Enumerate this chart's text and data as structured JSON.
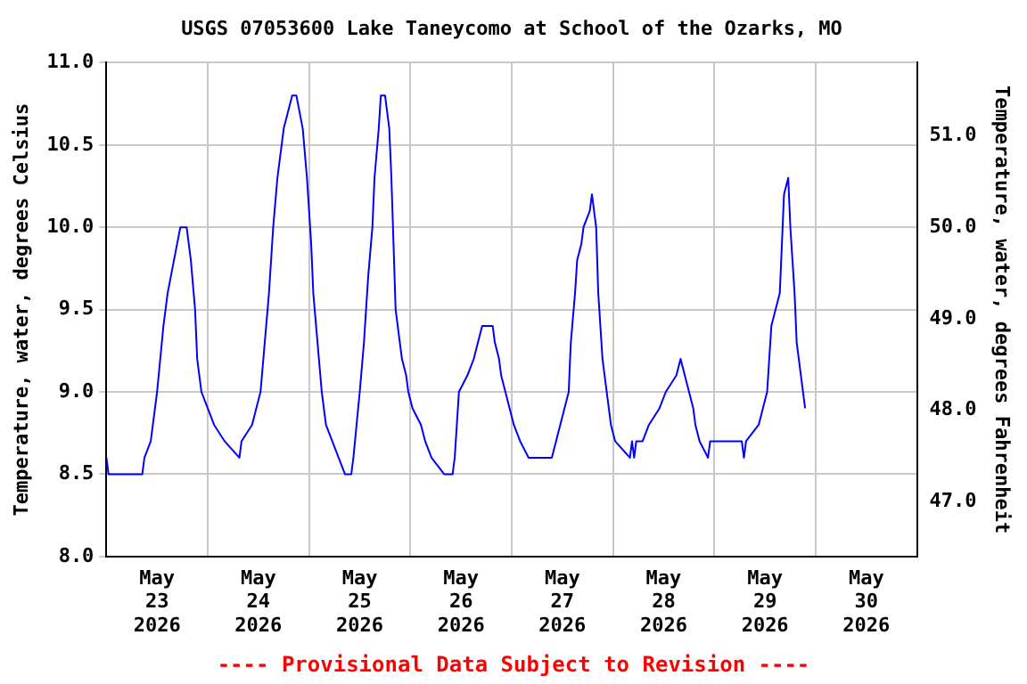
{
  "chart_data": {
    "type": "line",
    "title": "USGS 07053600 Lake Taneycomo at School of the Ozarks, MO",
    "ylabel": "Temperature, water, degrees Celsius",
    "y2label": "Temperature, water, degrees Fahrenheit",
    "annotations": [
      "---- Provisional Data Subject to Revision ----"
    ],
    "xlim": [
      "2026-05-23T00:00",
      "2026-05-31T00:00"
    ],
    "xticks": [
      {
        "value": "2026-05-23T00:00",
        "label": null
      },
      {
        "value": "2026-05-23T12:00",
        "label": "May\n23\n2026"
      },
      {
        "value": "2026-05-24T00:00",
        "label": null
      },
      {
        "value": "2026-05-24T12:00",
        "label": "May\n24\n2026"
      },
      {
        "value": "2026-05-25T00:00",
        "label": null
      },
      {
        "value": "2026-05-25T12:00",
        "label": "May\n25\n2026"
      },
      {
        "value": "2026-05-26T00:00",
        "label": null
      },
      {
        "value": "2026-05-26T12:00",
        "label": "May\n26\n2026"
      },
      {
        "value": "2026-05-27T00:00",
        "label": null
      },
      {
        "value": "2026-05-27T12:00",
        "label": "May\n27\n2026"
      },
      {
        "value": "2026-05-28T00:00",
        "label": null
      },
      {
        "value": "2026-05-28T12:00",
        "label": "May\n28\n2026"
      },
      {
        "value": "2026-05-29T00:00",
        "label": null
      },
      {
        "value": "2026-05-29T12:00",
        "label": "May\n29\n2026"
      },
      {
        "value": "2026-05-30T00:00",
        "label": null
      },
      {
        "value": "2026-05-30T12:00",
        "label": "May\n30\n2026"
      },
      {
        "value": "2026-05-31T00:00",
        "label": null
      }
    ],
    "ylim": [
      8,
      11
    ],
    "yticks": [
      {
        "value": 8,
        "label": "8.0"
      },
      {
        "value": 8.5,
        "label": "8.5"
      },
      {
        "value": 9,
        "label": "9.0"
      },
      {
        "value": 9.5,
        "label": "9.5"
      },
      {
        "value": 10,
        "label": "10.0"
      },
      {
        "value": 10.5,
        "label": "10.5"
      },
      {
        "value": 11,
        "label": "11.0"
      }
    ],
    "y2lim": [
      46.4,
      51.8
    ],
    "y2ticks": [
      {
        "value": 47,
        "label": "47.0"
      },
      {
        "value": 48,
        "label": "48.0"
      },
      {
        "value": 49,
        "label": "49.0"
      },
      {
        "value": 50,
        "label": "50.0"
      },
      {
        "value": 51,
        "label": "51.0"
      }
    ],
    "grid": true,
    "legend": false,
    "marker": "none",
    "line_style": "solid",
    "series": [
      {
        "color": "#0000ff",
        "x": [
          "2026-05-23T00:00",
          "2026-05-23T00:30",
          "2026-05-23T08:30",
          "2026-05-23T09:00",
          "2026-05-23T10:30",
          "2026-05-23T12:00",
          "2026-05-23T13:30",
          "2026-05-23T14:30",
          "2026-05-23T16:00",
          "2026-05-23T17:30",
          "2026-05-23T19:00",
          "2026-05-23T20:00",
          "2026-05-23T21:00",
          "2026-05-23T21:30",
          "2026-05-23T22:30",
          "2026-05-24T00:00",
          "2026-05-24T01:30",
          "2026-05-24T04:00",
          "2026-05-24T07:30",
          "2026-05-24T08:00",
          "2026-05-24T10:30",
          "2026-05-24T11:30",
          "2026-05-24T12:30",
          "2026-05-24T13:30",
          "2026-05-24T14:30",
          "2026-05-24T15:30",
          "2026-05-24T16:30",
          "2026-05-24T18:00",
          "2026-05-24T20:00",
          "2026-05-24T21:00",
          "2026-05-24T22:30",
          "2026-05-24T23:30",
          "2026-05-25T00:30",
          "2026-05-25T01:00",
          "2026-05-25T02:00",
          "2026-05-25T03:00",
          "2026-05-25T04:00",
          "2026-05-25T05:30",
          "2026-05-25T07:00",
          "2026-05-25T08:30",
          "2026-05-25T10:00",
          "2026-05-25T10:30",
          "2026-05-25T12:00",
          "2026-05-25T13:00",
          "2026-05-25T14:00",
          "2026-05-25T15:00",
          "2026-05-25T15:30",
          "2026-05-25T16:30",
          "2026-05-25T17:00",
          "2026-05-25T18:00",
          "2026-05-25T19:00",
          "2026-05-25T19:30",
          "2026-05-25T20:00",
          "2026-05-25T20:30",
          "2026-05-25T21:30",
          "2026-05-25T22:00",
          "2026-05-25T23:00",
          "2026-05-25T23:30",
          "2026-05-26T00:30",
          "2026-05-26T02:30",
          "2026-05-26T03:30",
          "2026-05-26T05:00",
          "2026-05-26T08:00",
          "2026-05-26T10:00",
          "2026-05-26T10:30",
          "2026-05-26T11:00",
          "2026-05-26T11:30",
          "2026-05-26T13:30",
          "2026-05-26T15:00",
          "2026-05-26T16:00",
          "2026-05-26T17:00",
          "2026-05-26T19:30",
          "2026-05-26T20:00",
          "2026-05-26T21:00",
          "2026-05-26T21:30",
          "2026-05-26T22:30",
          "2026-05-26T23:30",
          "2026-05-27T00:30",
          "2026-05-27T02:00",
          "2026-05-27T04:00",
          "2026-05-27T09:30",
          "2026-05-27T10:30",
          "2026-05-27T11:30",
          "2026-05-27T12:30",
          "2026-05-27T13:30",
          "2026-05-27T14:00",
          "2026-05-27T15:00",
          "2026-05-27T15:30",
          "2026-05-27T16:30",
          "2026-05-27T17:00",
          "2026-05-27T18:30",
          "2026-05-27T19:00",
          "2026-05-27T20:00",
          "2026-05-27T20:30",
          "2026-05-27T21:30",
          "2026-05-27T22:30",
          "2026-05-27T23:00",
          "2026-05-27T23:30",
          "2026-05-28T00:30",
          "2026-05-28T04:00",
          "2026-05-28T04:30",
          "2026-05-28T05:00",
          "2026-05-28T05:30",
          "2026-05-28T07:00",
          "2026-05-28T08:30",
          "2026-05-28T11:00",
          "2026-05-28T12:30",
          "2026-05-28T15:00",
          "2026-05-28T16:00",
          "2026-05-28T17:00",
          "2026-05-28T18:00",
          "2026-05-28T19:00",
          "2026-05-28T19:30",
          "2026-05-28T20:30",
          "2026-05-28T22:30",
          "2026-05-28T23:00",
          "2026-05-29T06:30",
          "2026-05-29T07:00",
          "2026-05-29T07:30",
          "2026-05-29T10:30",
          "2026-05-29T11:30",
          "2026-05-29T12:30",
          "2026-05-29T13:00",
          "2026-05-29T13:30",
          "2026-05-29T14:30",
          "2026-05-29T15:30",
          "2026-05-29T16:00",
          "2026-05-29T16:30",
          "2026-05-29T17:30",
          "2026-05-29T18:00",
          "2026-05-29T19:00",
          "2026-05-29T19:30",
          "2026-05-29T20:30",
          "2026-05-29T21:00",
          "2026-05-29T21:30"
        ],
        "values": [
          8.6,
          8.5,
          8.5,
          8.6,
          8.7,
          9.0,
          9.4,
          9.6,
          9.8,
          10.0,
          10.0,
          9.8,
          9.5,
          9.2,
          9.0,
          8.9,
          8.8,
          8.7,
          8.6,
          8.7,
          8.8,
          8.9,
          9.0,
          9.3,
          9.6,
          10.0,
          10.3,
          10.6,
          10.8,
          10.8,
          10.6,
          10.3,
          9.9,
          9.6,
          9.3,
          9.0,
          8.8,
          8.7,
          8.6,
          8.5,
          8.5,
          8.6,
          9.0,
          9.3,
          9.7,
          10.0,
          10.3,
          10.6,
          10.8,
          10.8,
          10.6,
          10.3,
          9.9,
          9.5,
          9.3,
          9.2,
          9.1,
          9.0,
          8.9,
          8.8,
          8.7,
          8.6,
          8.5,
          8.5,
          8.6,
          8.8,
          9.0,
          9.1,
          9.2,
          9.3,
          9.4,
          9.4,
          9.3,
          9.2,
          9.1,
          9.0,
          8.9,
          8.8,
          8.7,
          8.6,
          8.6,
          8.7,
          8.8,
          8.9,
          9.0,
          9.3,
          9.6,
          9.8,
          9.9,
          10.0,
          10.1,
          10.2,
          10.0,
          9.6,
          9.2,
          9.0,
          8.9,
          8.8,
          8.7,
          8.6,
          8.7,
          8.6,
          8.7,
          8.7,
          8.8,
          8.9,
          9.0,
          9.1,
          9.2,
          9.1,
          9.0,
          8.9,
          8.8,
          8.7,
          8.6,
          8.7,
          8.7,
          8.6,
          8.7,
          8.8,
          8.9,
          9.0,
          9.2,
          9.4,
          9.5,
          9.6,
          9.9,
          10.2,
          10.3,
          10.0,
          9.6,
          9.3,
          9.1,
          9.0,
          8.9
        ]
      }
    ]
  }
}
